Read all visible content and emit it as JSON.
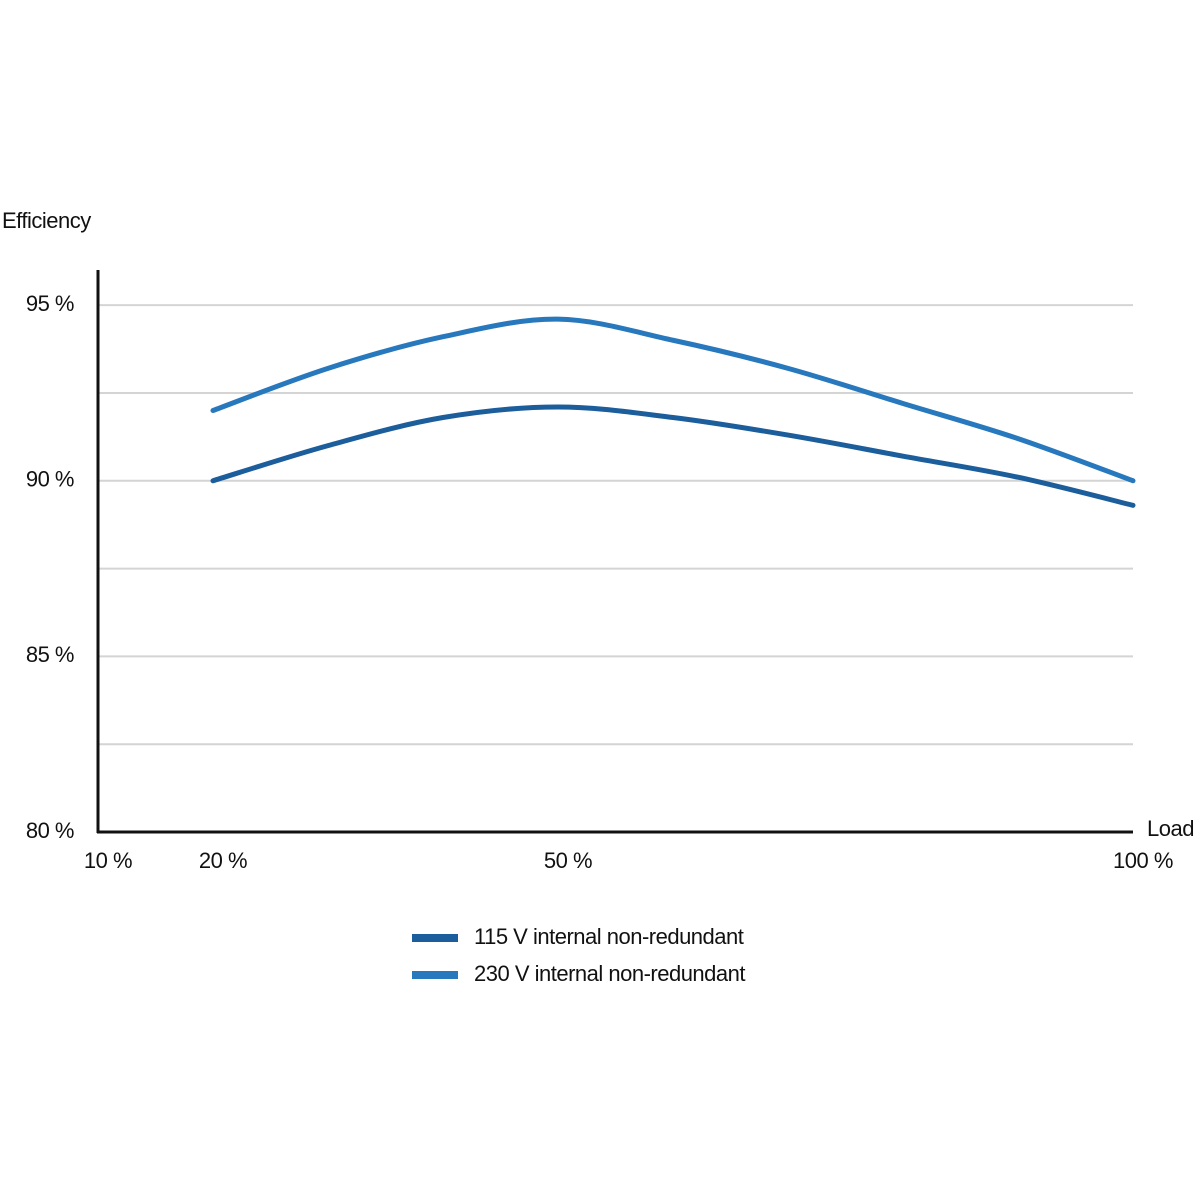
{
  "chart_data": {
    "type": "line",
    "y_label": "Efficiency",
    "x_label": "Load",
    "x": [
      20,
      30,
      40,
      50,
      60,
      70,
      80,
      90,
      100
    ],
    "series": [
      {
        "name": "115 V internal non-redundant",
        "color": "#1c5d9c",
        "values": [
          90.0,
          91.0,
          91.8,
          92.1,
          91.8,
          91.3,
          90.7,
          90.1,
          89.3
        ]
      },
      {
        "name": "230 V internal non-redundant",
        "color": "#2878bd",
        "values": [
          92.0,
          93.2,
          94.1,
          94.6,
          94.0,
          93.2,
          92.2,
          91.2,
          90.0
        ]
      }
    ],
    "xlim": [
      10,
      100
    ],
    "xticks": [
      {
        "value": 10,
        "label": "10 %"
      },
      {
        "value": 20,
        "label": "20 %"
      },
      {
        "value": 50,
        "label": "50 %"
      },
      {
        "value": 100,
        "label": "100 %"
      }
    ],
    "ylim": [
      80,
      96
    ],
    "yticks": [
      {
        "value": 80,
        "label": "80 %"
      },
      {
        "value": 85,
        "label": "85 %"
      },
      {
        "value": 90,
        "label": "90 %"
      },
      {
        "value": 95,
        "label": "95 %"
      }
    ],
    "minor_yticks": [
      82.5,
      87.5,
      92.5
    ],
    "grid": true,
    "legend": "bottom"
  }
}
